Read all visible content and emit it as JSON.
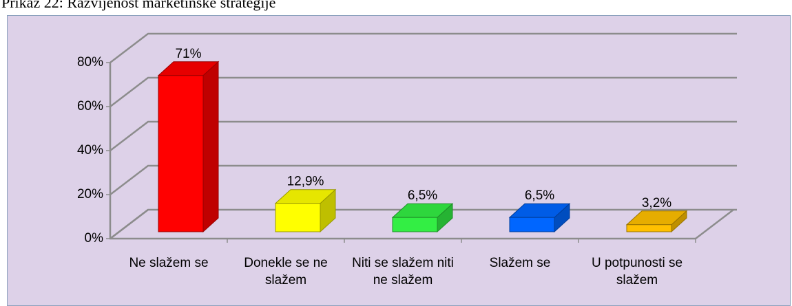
{
  "chart_data": {
    "type": "bar3d",
    "title": "Prikaz 22: Razvijenost marketinške strategije",
    "categories": [
      "Ne slažem se",
      "Donekle se ne slažem",
      "Niti se slažem niti ne slažem",
      "Slažem se",
      "U potpunosti se slažem"
    ],
    "values": [
      71,
      12.9,
      6.5,
      6.5,
      3.2
    ],
    "value_labels": [
      "71%",
      "12,9%",
      "6,5%",
      "6,5%",
      "3,2%"
    ],
    "colors": [
      "#ff0000",
      "#ffff00",
      "#33ee44",
      "#0066ff",
      "#ffc000"
    ],
    "ylim": [
      0,
      80
    ],
    "yticks": [
      {
        "value": 0,
        "label": "0%"
      },
      {
        "value": 20,
        "label": "20%"
      },
      {
        "value": 40,
        "label": "40%"
      },
      {
        "value": 60,
        "label": "60%"
      },
      {
        "value": 80,
        "label": "80%"
      }
    ],
    "grid": true
  }
}
